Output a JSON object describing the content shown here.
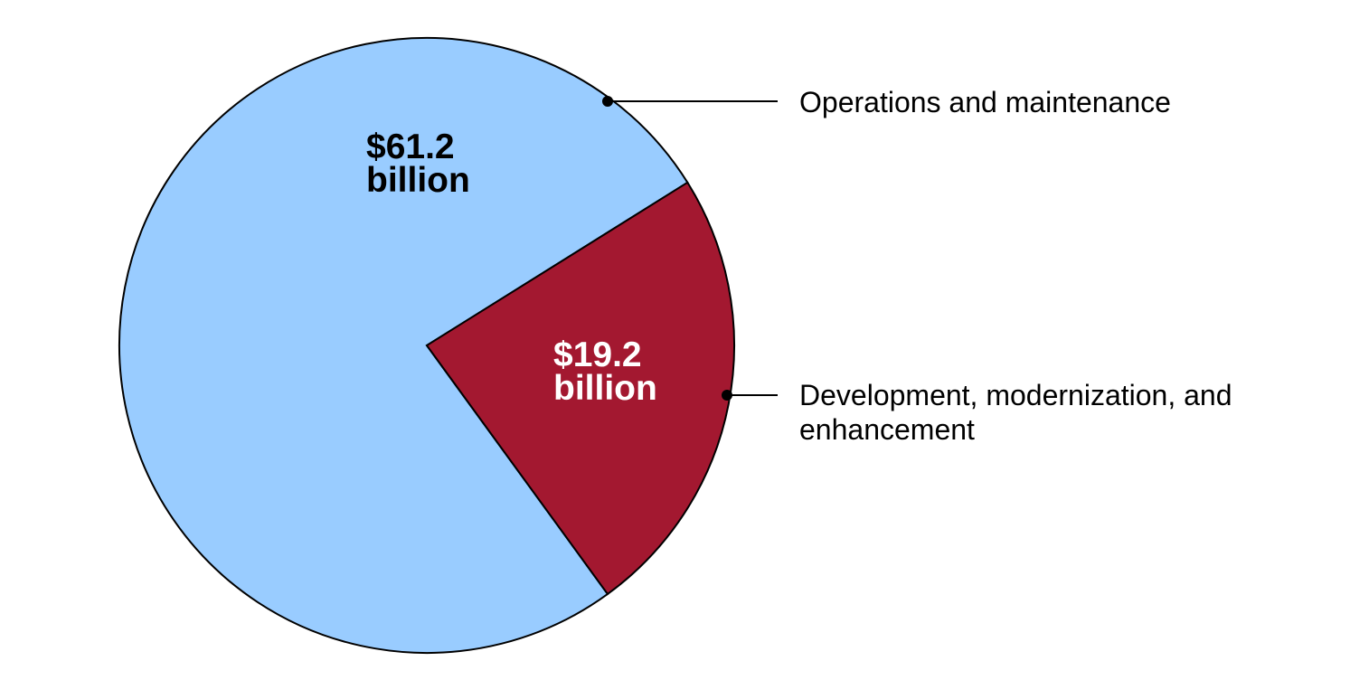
{
  "chart_data": {
    "type": "pie",
    "title": "",
    "unit": "billion",
    "slices": [
      {
        "label_lines": [
          "Operations and maintenance"
        ],
        "value": 61.2,
        "value_lines": [
          "$61.2",
          "billion"
        ],
        "color": "#99ccff",
        "text_color": "#000000"
      },
      {
        "label_lines": [
          "Development, modernization, and",
          "enhancement"
        ],
        "value": 19.2,
        "value_lines": [
          "$19.2",
          "billion"
        ],
        "color": "#a31830",
        "text_color": "#ffffff"
      }
    ],
    "legend_placement": "right",
    "border_color": "#000000"
  }
}
